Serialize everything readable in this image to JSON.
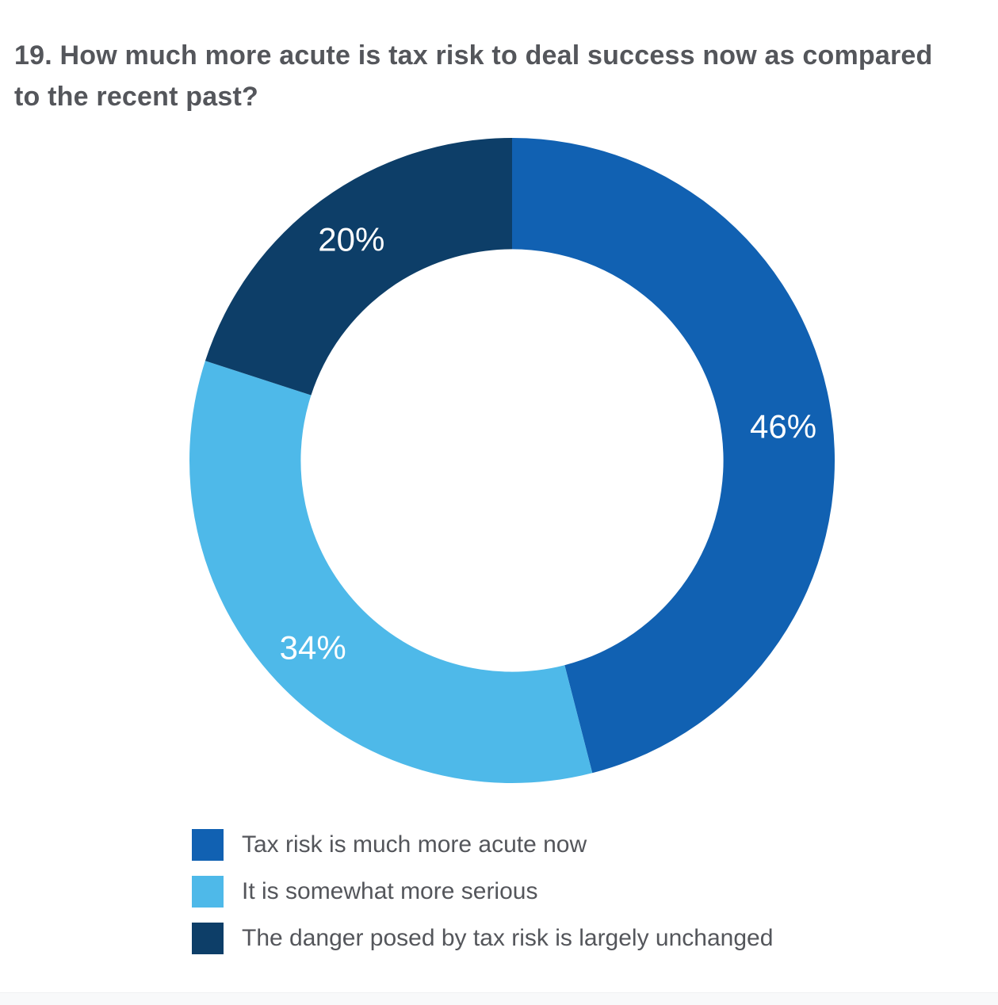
{
  "page": {
    "title": "19. How much more acute is tax risk to deal success now as compared to the recent past?"
  },
  "chart_data": {
    "type": "pie",
    "subtype": "donut",
    "title": "19. How much more acute is tax risk to deal success now as compared to the recent past?",
    "units": "percent",
    "start_angle_deg": 0,
    "direction": "clockwise",
    "donut_hole_ratio": 0.655,
    "label_color": "#FFFFFF",
    "legend_position": "bottom-left",
    "series": [
      {
        "label": "Tax risk is much more acute now",
        "value": 46,
        "display": "46%",
        "color": "#1161B2"
      },
      {
        "label": "It is somewhat more serious",
        "value": 34,
        "display": "34%",
        "color": "#4EB9E9"
      },
      {
        "label": "The danger posed by tax risk is largely unchanged",
        "value": 20,
        "display": "20%",
        "color": "#0D3E68"
      }
    ]
  },
  "colors": {
    "title_text": "#54565B",
    "legend_text": "#54565B",
    "background": "#FFFFFF",
    "bottom_strip": "#F8F9FA"
  }
}
